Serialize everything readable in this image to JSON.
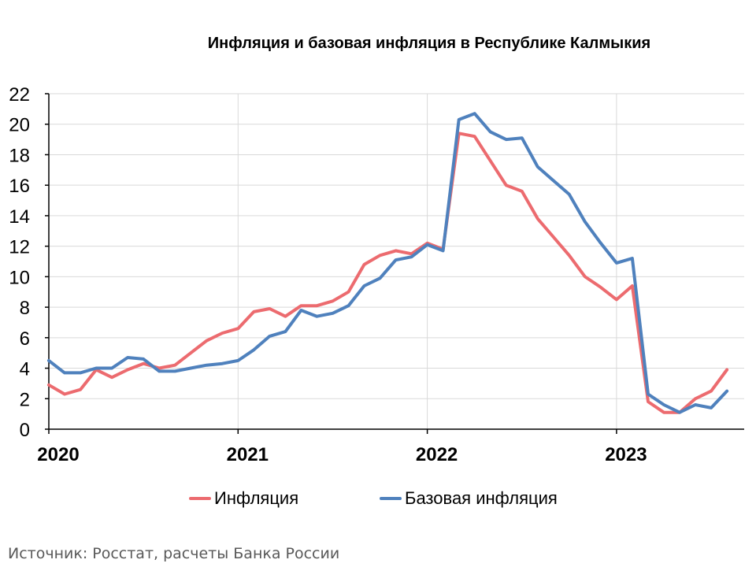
{
  "chart_data": {
    "type": "line",
    "title": "Инфляция и базовая инфляция в Республике Калмыкия",
    "xlabel": "",
    "ylabel": "",
    "ylim": [
      0,
      22
    ],
    "yticks": [
      "0",
      "2",
      "4",
      "6",
      "8",
      "10",
      "12",
      "14",
      "16",
      "18",
      "20",
      "22"
    ],
    "xticks": [
      "2020",
      "2021",
      "2022",
      "2023"
    ],
    "grid": true,
    "legend_position": "bottom",
    "x": [
      "2020-01",
      "2020-02",
      "2020-03",
      "2020-04",
      "2020-05",
      "2020-06",
      "2020-07",
      "2020-08",
      "2020-09",
      "2020-10",
      "2020-11",
      "2020-12",
      "2021-01",
      "2021-02",
      "2021-03",
      "2021-04",
      "2021-05",
      "2021-06",
      "2021-07",
      "2021-08",
      "2021-09",
      "2021-10",
      "2021-11",
      "2021-12",
      "2022-01",
      "2022-02",
      "2022-03",
      "2022-04",
      "2022-05",
      "2022-06",
      "2022-07",
      "2022-08",
      "2022-09",
      "2022-10",
      "2022-11",
      "2022-12",
      "2023-01",
      "2023-02",
      "2023-03",
      "2023-04",
      "2023-05",
      "2023-06",
      "2023-07",
      "2023-08"
    ],
    "series": [
      {
        "name": "Инфляция",
        "color": "#ec6b6f",
        "values": [
          2.9,
          2.3,
          2.6,
          3.9,
          3.4,
          3.9,
          4.3,
          4.0,
          4.2,
          5.0,
          5.8,
          6.3,
          6.6,
          7.7,
          7.9,
          7.4,
          8.1,
          8.1,
          8.4,
          9.0,
          10.8,
          11.4,
          11.7,
          11.5,
          12.2,
          11.8,
          19.4,
          19.2,
          17.6,
          16.0,
          15.6,
          13.8,
          12.6,
          11.4,
          10.0,
          9.3,
          8.5,
          9.4,
          1.8,
          1.1,
          1.1,
          2.0,
          2.5,
          3.9
        ]
      },
      {
        "name": "Базовая инфляция",
        "color": "#4f81bd",
        "values": [
          4.5,
          3.7,
          3.7,
          4.0,
          4.0,
          4.7,
          4.6,
          3.8,
          3.8,
          4.0,
          4.2,
          4.3,
          4.5,
          5.2,
          6.1,
          6.4,
          7.8,
          7.4,
          7.6,
          8.1,
          9.4,
          9.9,
          11.1,
          11.3,
          12.1,
          11.7,
          20.3,
          20.7,
          19.5,
          19.0,
          19.1,
          17.2,
          16.3,
          15.4,
          13.6,
          12.2,
          10.9,
          11.2,
          2.3,
          1.6,
          1.1,
          1.6,
          1.4,
          2.5
        ]
      }
    ]
  },
  "legend": {
    "items": [
      {
        "label": "Инфляция",
        "color": "#ec6b6f"
      },
      {
        "label": "Базовая инфляция",
        "color": "#4f81bd"
      }
    ]
  },
  "source": "Источник: Росстат, расчеты Банка России"
}
